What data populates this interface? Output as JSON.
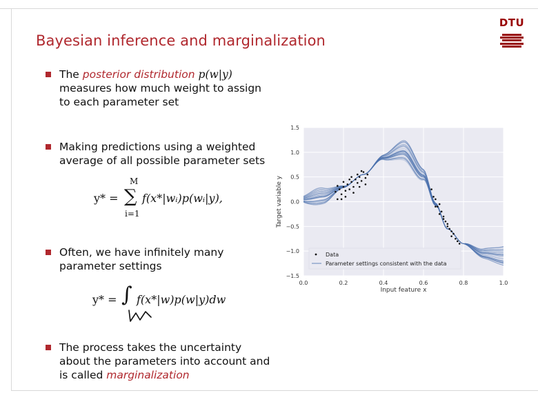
{
  "slide": {
    "title": "Bayesian inference and marginalization",
    "logo_text": "DTU"
  },
  "bullets": [
    {
      "pre": "The ",
      "em": "posterior distribution",
      "post": " ",
      "math": "p(w|y)",
      "tail": " measures how much weight to assign to each parameter set"
    },
    {
      "pre": "Making predictions using a weighted average of all possible parameter sets",
      "em": "",
      "post": "",
      "math": "",
      "tail": ""
    },
    {
      "pre": "Often, we have infinitely many parameter settings",
      "em": "",
      "post": "",
      "math": "",
      "tail": ""
    },
    {
      "pre": "The process takes the uncertainty about the parameters into account and is called ",
      "em": "marginalization",
      "post": "",
      "math": "",
      "tail": ""
    }
  ],
  "equations": {
    "sum_lhs": "y* =",
    "sum_upper": "M",
    "sum_lower": "i=1",
    "sum_body": "f(x*|wᵢ)p(wᵢ|y),",
    "int_lhs": "y* =",
    "int_body": "f(x*|w)p(w|y)dw"
  },
  "chart_data": {
    "type": "line",
    "xlabel": "Input feature x",
    "ylabel": "Target variable y",
    "xlim": [
      0.0,
      1.0
    ],
    "ylim": [
      -1.5,
      1.5
    ],
    "xticks": [
      0.0,
      0.2,
      0.4,
      0.6,
      0.8,
      1.0
    ],
    "yticks": [
      1.5,
      1.0,
      0.5,
      0.0,
      -0.5,
      -1.0,
      -1.5
    ],
    "grid": true,
    "legend_position": "lower-left",
    "legend": [
      "Data",
      "Parameter settings consistent with the data"
    ],
    "colors": {
      "background": "#eaeaf2",
      "line": "#4c72b0",
      "points": "#111111"
    },
    "mean_curve": {
      "x": [
        0.0,
        0.1,
        0.2,
        0.3,
        0.4,
        0.5,
        0.6,
        0.66,
        0.72,
        0.8,
        0.9,
        1.0
      ],
      "y": [
        0.05,
        0.12,
        0.3,
        0.55,
        0.9,
        1.05,
        0.55,
        -0.05,
        -0.55,
        -0.85,
        -1.05,
        -1.1
      ]
    },
    "data_points": {
      "x": [
        0.16,
        0.17,
        0.18,
        0.19,
        0.2,
        0.21,
        0.22,
        0.23,
        0.24,
        0.25,
        0.26,
        0.27,
        0.28,
        0.29,
        0.3,
        0.31,
        0.32,
        0.17,
        0.19,
        0.21,
        0.23,
        0.25,
        0.27,
        0.29,
        0.31,
        0.2,
        0.24,
        0.28,
        0.64,
        0.65,
        0.66,
        0.67,
        0.68,
        0.69,
        0.7,
        0.71,
        0.72,
        0.73,
        0.74,
        0.75,
        0.76,
        0.77,
        0.78,
        0.66,
        0.68,
        0.7,
        0.72,
        0.74
      ],
      "y": [
        0.2,
        0.05,
        0.25,
        0.15,
        0.3,
        0.1,
        0.35,
        0.25,
        0.4,
        0.3,
        0.45,
        0.38,
        0.5,
        0.42,
        0.6,
        0.48,
        0.55,
        0.32,
        0.05,
        0.22,
        0.45,
        0.18,
        0.55,
        0.62,
        0.35,
        0.4,
        0.5,
        0.3,
        0.25,
        0.1,
        0.05,
        -0.1,
        -0.05,
        -0.2,
        -0.3,
        -0.4,
        -0.45,
        -0.55,
        -0.6,
        -0.65,
        -0.75,
        -0.8,
        -0.85,
        -0.1,
        -0.25,
        -0.35,
        -0.5,
        -0.7
      ]
    }
  }
}
